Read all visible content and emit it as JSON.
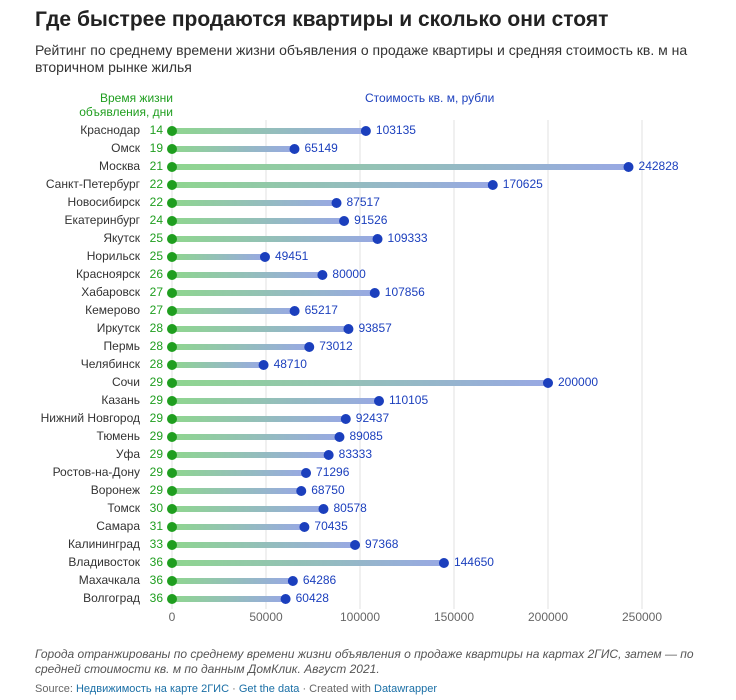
{
  "chart_data": {
    "type": "dumbbell",
    "title": "Где быстрее продаются квартиры и сколько они стоят",
    "subtitle": "Рейтинг по среднему времени жизни объявления о продаже квартиры и средняя стоимость кв. м на вторичном рынке жилья",
    "categories": [
      "Краснодар",
      "Омск",
      "Москва",
      "Санкт-Петербург",
      "Новосибирск",
      "Екатеринбург",
      "Якутск",
      "Норильск",
      "Красноярск",
      "Хабаровск",
      "Кемерово",
      "Иркутск",
      "Пермь",
      "Челябинск",
      "Сочи",
      "Казань",
      "Нижний Новгород",
      "Тюмень",
      "Уфа",
      "Ростов-на-Дону",
      "Воронеж",
      "Томск",
      "Самара",
      "Калининград",
      "Владивосток",
      "Махачкала",
      "Волгоград"
    ],
    "series": [
      {
        "name": "Время жизни объявления, дни",
        "color": "#1f9e1f",
        "values": [
          14,
          19,
          21,
          22,
          22,
          24,
          25,
          25,
          26,
          27,
          27,
          28,
          28,
          28,
          29,
          29,
          29,
          29,
          29,
          29,
          29,
          30,
          31,
          33,
          36,
          36,
          36
        ]
      },
      {
        "name": "Стоимость кв. м, рубли",
        "color": "#1b3fbd",
        "values": [
          103135,
          65149,
          242828,
          170625,
          87517,
          91526,
          109333,
          49451,
          80000,
          107856,
          65217,
          93857,
          73012,
          48710,
          200000,
          110105,
          92437,
          89085,
          83333,
          71296,
          68750,
          80578,
          70435,
          97368,
          144650,
          64286,
          60428
        ]
      }
    ],
    "xlim": [
      0,
      250000
    ],
    "xticks": [
      0,
      50000,
      100000,
      150000,
      200000,
      250000
    ],
    "grid": true,
    "note": "Города отранжированы по среднему времени жизни объявления о продаже квартиры на картах 2ГИС, затем — по средней стоимости кв. м по данным ДомКлик. Август 2021.",
    "source": {
      "label": "Source:",
      "link": "Недвижимость на карте 2ГИС",
      "separator": "·",
      "data_link": "Get the data",
      "credit": "Created with",
      "credit_link": "Datawrapper"
    }
  }
}
